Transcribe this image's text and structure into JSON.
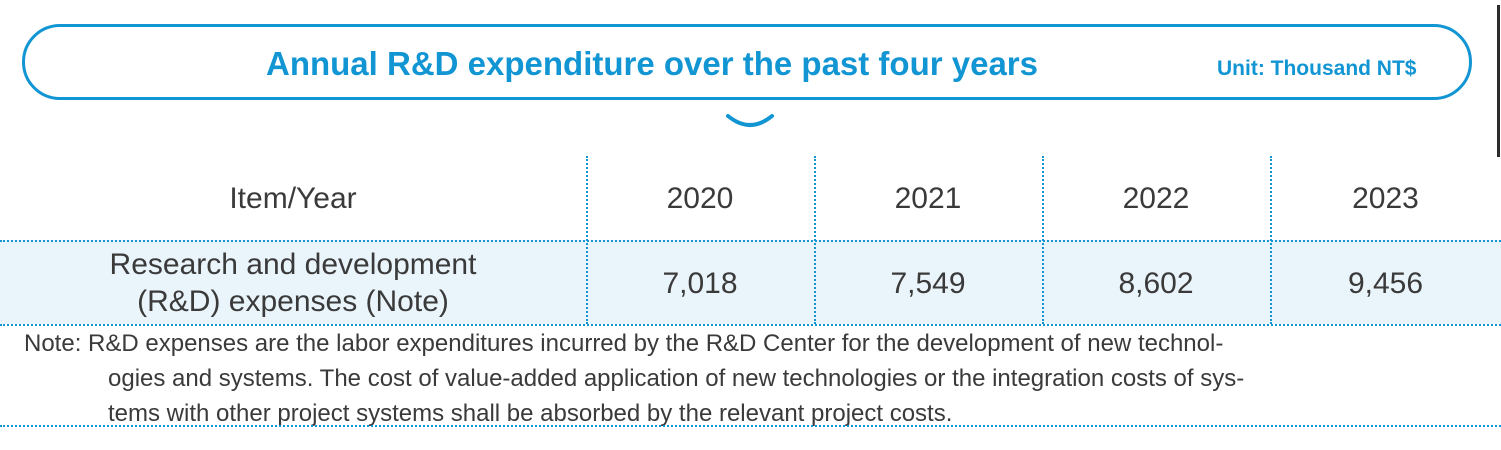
{
  "header": {
    "title": "Annual R&D expenditure over the past four years",
    "unit": "Unit: Thousand NT$"
  },
  "table": {
    "columns": [
      "Item/Year",
      "2020",
      "2021",
      "2022",
      "2023"
    ],
    "rows": [
      {
        "label_line1": "Research and development",
        "label_line2": "(R&D) expenses (Note)",
        "values": [
          "7,018",
          "7,549",
          "8,602",
          "9,456"
        ]
      }
    ]
  },
  "note": {
    "line1": "Note: R&D expenses are the labor expenditures incurred by the R&D Center for the development of new technol-",
    "line2": "ogies and systems. The cost of value-added application of new technologies or the integration costs of sys-",
    "line3": "tems with other project systems shall be absorbed by the relevant project costs."
  },
  "colors": {
    "accent": "#1295d3",
    "row_band": "#eaf4fb",
    "text": "#3a3a3a"
  },
  "icons": {
    "chevron": "chevron-down-icon"
  }
}
